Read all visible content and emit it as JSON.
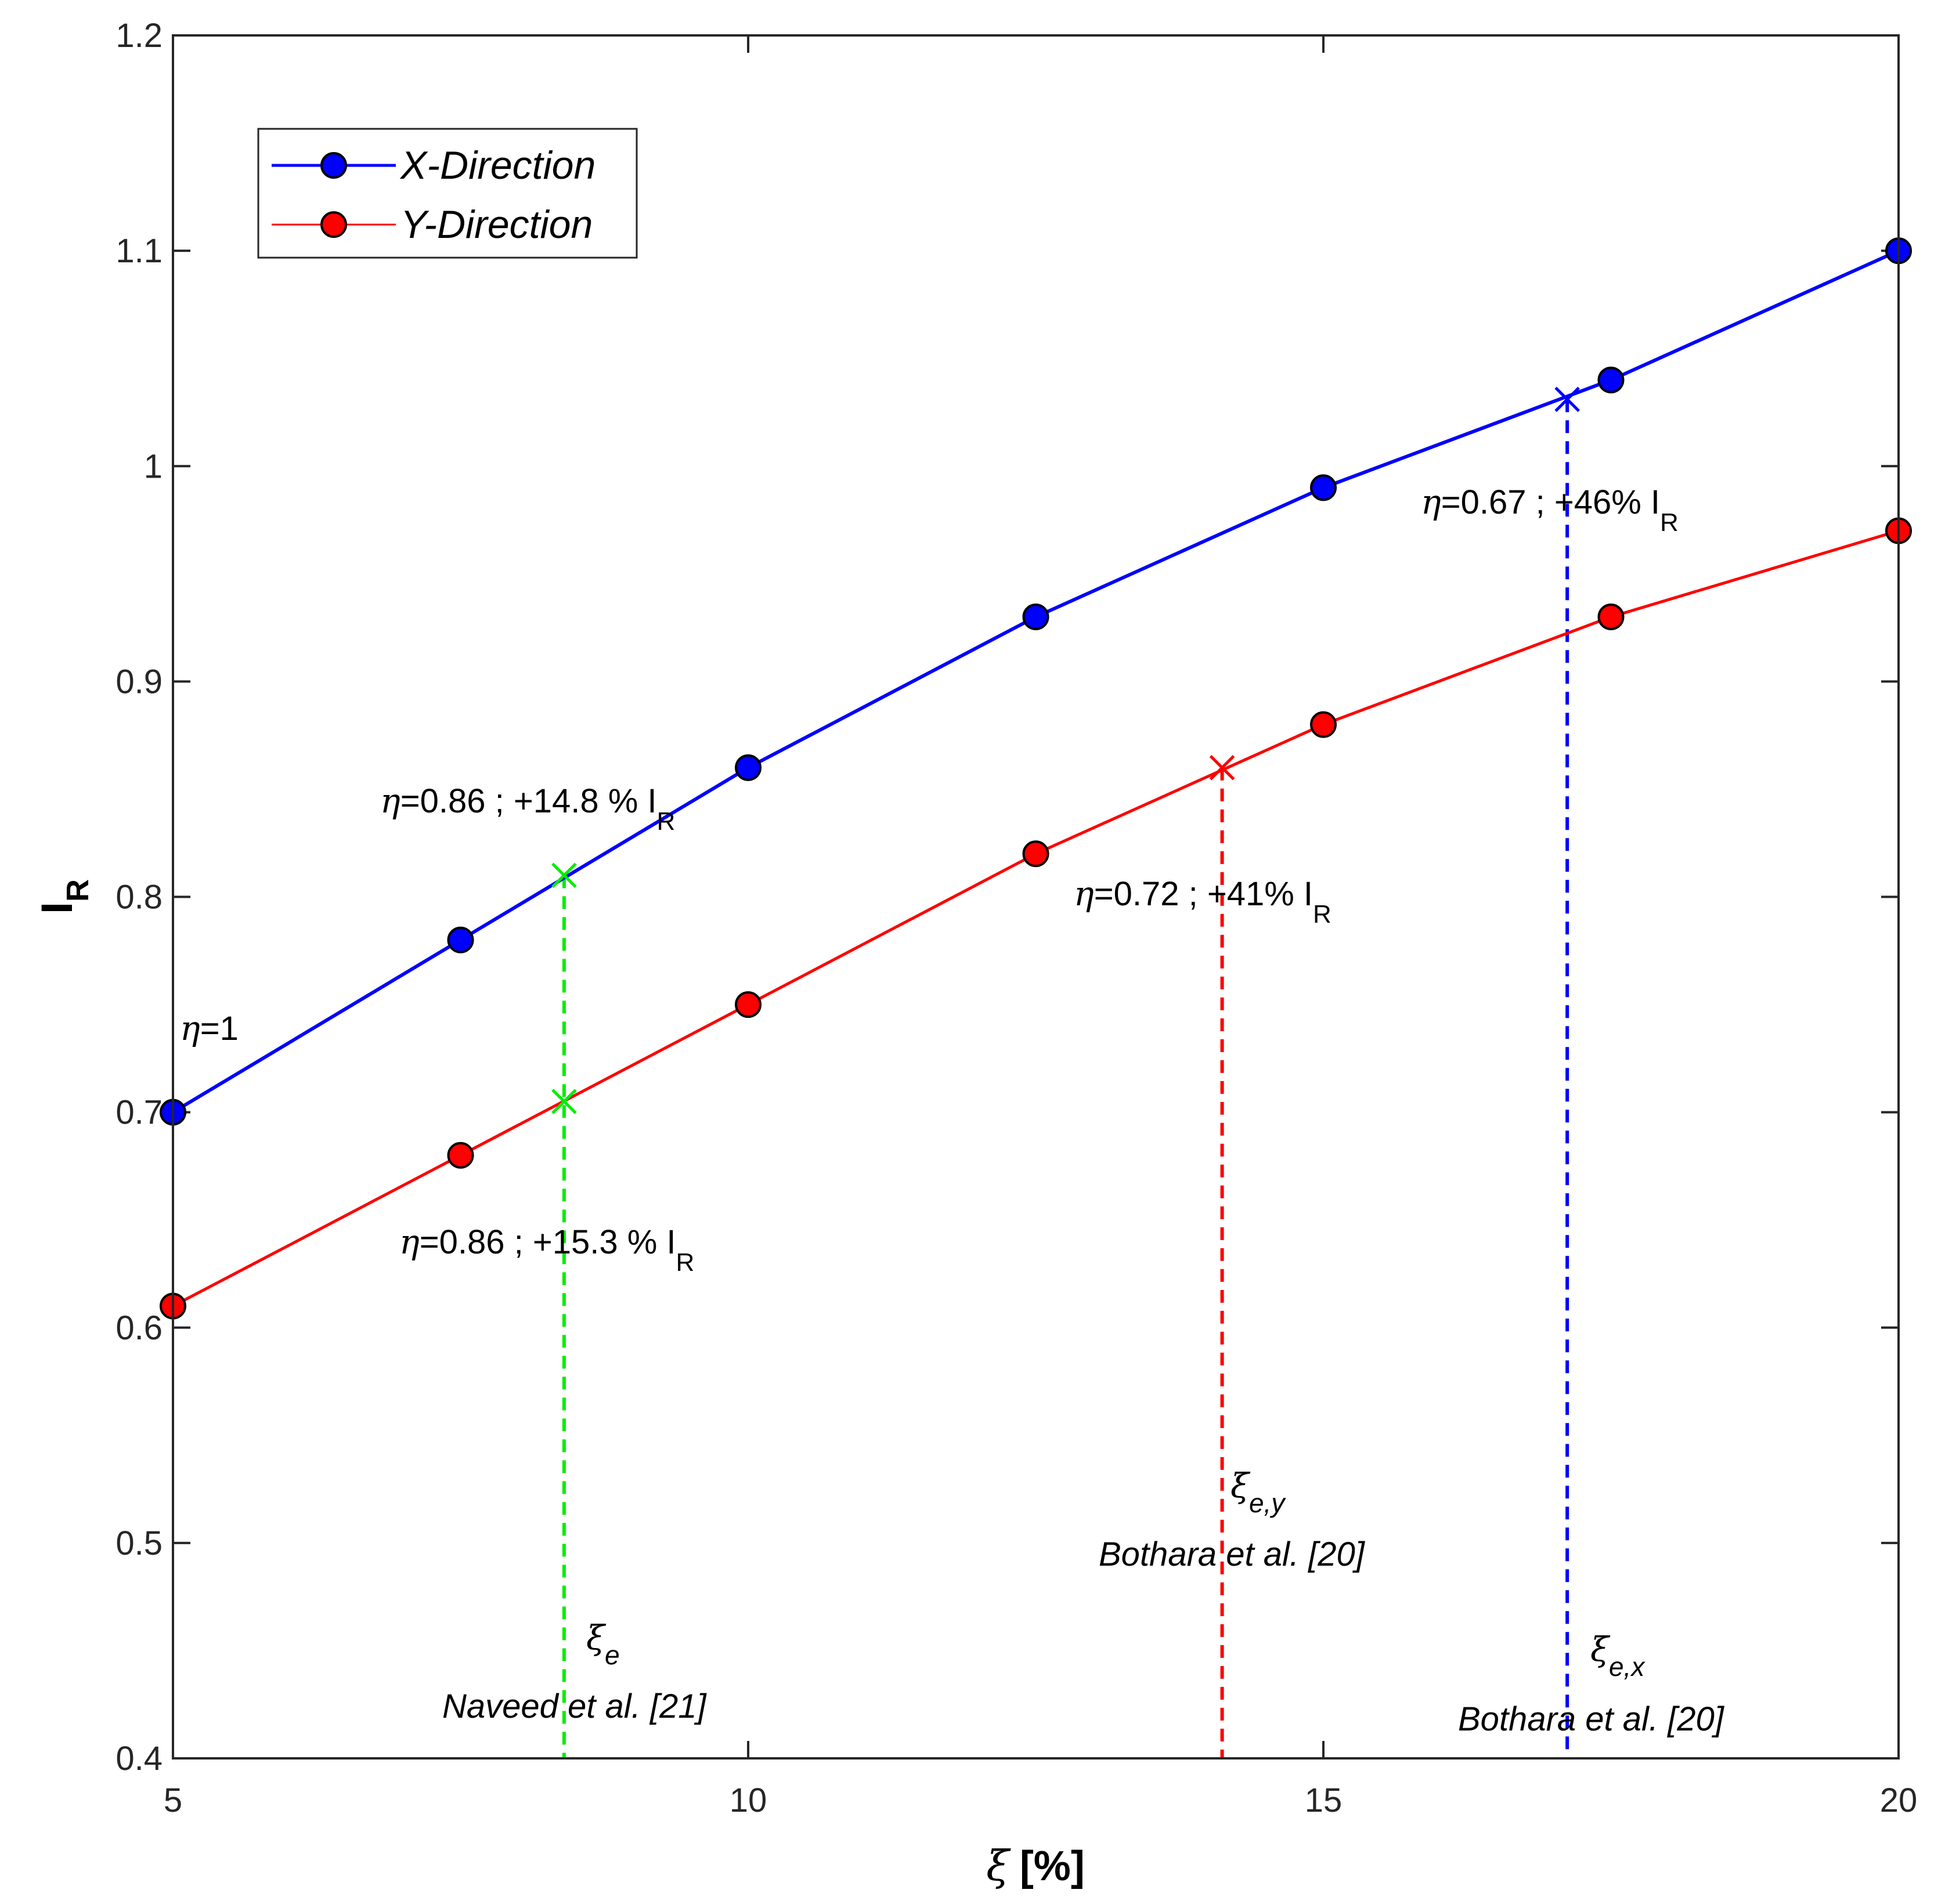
{
  "chart_data": {
    "type": "line",
    "title": "",
    "xlabel": "ξ [%]",
    "xlabel_symbol": "ξ",
    "xlabel_unit": "[%]",
    "ylabel": "IR",
    "ylabel_main": "I",
    "ylabel_sub": "R",
    "xlim": [
      5,
      20
    ],
    "ylim": [
      0.4,
      1.2
    ],
    "xticks": [
      5,
      10,
      15,
      20
    ],
    "xtick_labels": [
      "5",
      "10",
      "15",
      "20"
    ],
    "yticks": [
      0.4,
      0.5,
      0.6,
      0.7,
      0.8,
      0.9,
      1.0,
      1.1,
      1.2
    ],
    "ytick_labels": [
      "0.4",
      "0.5",
      "0.6",
      "0.7",
      "0.8",
      "0.9",
      "1",
      "1.1",
      "1.2"
    ],
    "grid": false,
    "legend_position": "top-left",
    "series": [
      {
        "name": "X-Direction",
        "color": "#0000ff",
        "marker_color": "#0000ff",
        "x": [
          5,
          7.5,
          10,
          12.5,
          15,
          17.5,
          20
        ],
        "values": [
          0.7,
          0.78,
          0.86,
          0.93,
          0.99,
          1.04,
          1.1
        ]
      },
      {
        "name": "Y-Direction",
        "color": "#ff0000",
        "marker_color": "#ff0000",
        "x": [
          5,
          7.5,
          10,
          12.5,
          15,
          17.5,
          20
        ],
        "values": [
          0.61,
          0.68,
          0.75,
          0.82,
          0.88,
          0.93,
          0.97
        ]
      }
    ],
    "vertical_markers": [
      {
        "name": "naveed",
        "x": 8.4,
        "color": "#00ee00",
        "cross_y": [
          0.81,
          0.705
        ],
        "symbol": "ξ",
        "subscript": "e",
        "ref": "Naveed et al. [21]"
      },
      {
        "name": "bothara-y",
        "x": 14.12,
        "color": "#ff0000",
        "cross_y": [
          0.86
        ],
        "symbol": "ξ",
        "subscript": "e,y",
        "ref": "Bothara et al. [20]"
      },
      {
        "name": "bothara-x",
        "x": 17.12,
        "color": "#0000ff",
        "cross_y": [
          1.031
        ],
        "symbol": "ξ",
        "subscript": "e,x",
        "ref": "Bothara et al. [20]"
      }
    ],
    "annotations": [
      {
        "name": "eta-1",
        "eta": "η",
        "text": "=1",
        "sub": ""
      },
      {
        "name": "eta-086-x",
        "eta": "η",
        "text": "=0.86 ; +14.8 % I",
        "sub": "R"
      },
      {
        "name": "eta-086-y",
        "eta": "η",
        "text": "=0.86 ; +15.3 % I",
        "sub": "R"
      },
      {
        "name": "eta-072",
        "eta": "η",
        "text": "=0.72 ; +41% I",
        "sub": "R"
      },
      {
        "name": "eta-067",
        "eta": "η",
        "text": "=0.67 ; +46% I",
        "sub": "R"
      }
    ]
  }
}
